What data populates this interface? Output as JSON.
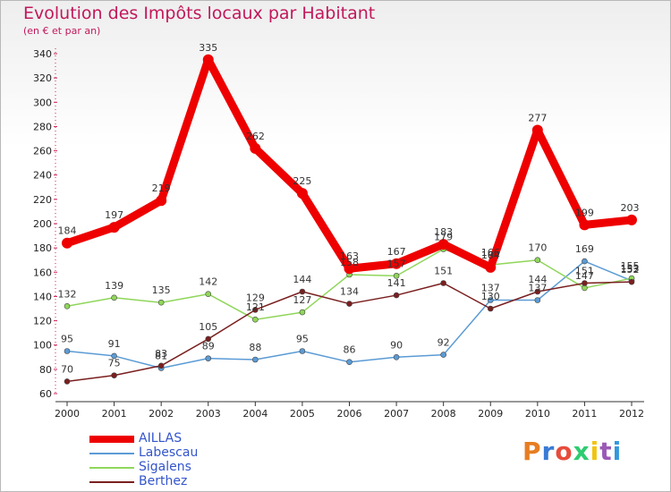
{
  "title": "Evolution des Impôts locaux par Habitant",
  "subtitle": "(en € et par an)",
  "brand": "Proxiti",
  "brand_colors": [
    "#e67e22",
    "#3a7bd5",
    "#e74c3c",
    "#2ecc71",
    "#f1c40f",
    "#9b59b6",
    "#3498db"
  ],
  "chart_data": {
    "type": "line",
    "x": [
      "2000",
      "2001",
      "2002",
      "2003",
      "2004",
      "2005",
      "2006",
      "2007",
      "2008",
      "2009",
      "2010",
      "2011",
      "2012"
    ],
    "ylim": [
      60,
      340
    ],
    "yticks": [
      60,
      80,
      100,
      120,
      140,
      160,
      180,
      200,
      220,
      240,
      260,
      280,
      300,
      320,
      340
    ],
    "grid": false,
    "legend_position": "bottom-left",
    "series": [
      {
        "name": "AILLAS",
        "color": "#ee0000",
        "width": 9,
        "values": [
          184,
          197,
          219,
          335,
          262,
          225,
          163,
          167,
          183,
          164,
          277,
          199,
          203
        ]
      },
      {
        "name": "Labescau",
        "color": "#5b9bd5",
        "width": 1.5,
        "values": [
          95,
          91,
          81,
          89,
          88,
          95,
          86,
          90,
          92,
          137,
          137,
          169,
          153
        ]
      },
      {
        "name": "Sigalens",
        "color": "#8fd65a",
        "width": 1.5,
        "values": [
          132,
          139,
          135,
          142,
          121,
          127,
          158,
          157,
          179,
          166,
          170,
          147,
          155
        ]
      },
      {
        "name": "Berthez",
        "color": "#7a1f1f",
        "width": 1.5,
        "values": [
          70,
          75,
          83,
          105,
          129,
          144,
          134,
          141,
          151,
          130,
          144,
          151,
          152
        ]
      }
    ],
    "data_labels": [
      {
        "s": 0,
        "i": 0,
        "text": "184"
      },
      {
        "s": 0,
        "i": 1,
        "text": "197"
      },
      {
        "s": 0,
        "i": 2,
        "text": "219"
      },
      {
        "s": 0,
        "i": 3,
        "text": "335"
      },
      {
        "s": 0,
        "i": 4,
        "text": "262"
      },
      {
        "s": 0,
        "i": 5,
        "text": "225"
      },
      {
        "s": 0,
        "i": 6,
        "text": "163"
      },
      {
        "s": 0,
        "i": 7,
        "text": "167"
      },
      {
        "s": 0,
        "i": 8,
        "text": "183"
      },
      {
        "s": 0,
        "i": 9,
        "text": "164"
      },
      {
        "s": 0,
        "i": 10,
        "text": "277"
      },
      {
        "s": 0,
        "i": 11,
        "text": "199"
      },
      {
        "s": 0,
        "i": 12,
        "text": "203"
      },
      {
        "s": 1,
        "i": 0,
        "text": "95"
      },
      {
        "s": 1,
        "i": 1,
        "text": "91"
      },
      {
        "s": 1,
        "i": 2,
        "text": "81"
      },
      {
        "s": 1,
        "i": 3,
        "text": "89"
      },
      {
        "s": 1,
        "i": 4,
        "text": "88"
      },
      {
        "s": 1,
        "i": 5,
        "text": "95"
      },
      {
        "s": 1,
        "i": 6,
        "text": "86"
      },
      {
        "s": 1,
        "i": 7,
        "text": "90"
      },
      {
        "s": 1,
        "i": 8,
        "text": "92"
      },
      {
        "s": 1,
        "i": 9,
        "text": "137"
      },
      {
        "s": 1,
        "i": 10,
        "text": "137"
      },
      {
        "s": 1,
        "i": 11,
        "text": "169"
      },
      {
        "s": 1,
        "i": 12,
        "text": "153"
      },
      {
        "s": 2,
        "i": 0,
        "text": "132"
      },
      {
        "s": 2,
        "i": 1,
        "text": "139"
      },
      {
        "s": 2,
        "i": 2,
        "text": "135"
      },
      {
        "s": 2,
        "i": 3,
        "text": "142"
      },
      {
        "s": 2,
        "i": 4,
        "text": "121"
      },
      {
        "s": 2,
        "i": 5,
        "text": "127"
      },
      {
        "s": 2,
        "i": 6,
        "text": "158"
      },
      {
        "s": 2,
        "i": 7,
        "text": "157"
      },
      {
        "s": 2,
        "i": 8,
        "text": "179"
      },
      {
        "s": 2,
        "i": 9,
        "text": "166"
      },
      {
        "s": 2,
        "i": 10,
        "text": "170"
      },
      {
        "s": 2,
        "i": 11,
        "text": "147"
      },
      {
        "s": 2,
        "i": 12,
        "text": "155"
      },
      {
        "s": 3,
        "i": 0,
        "text": "70"
      },
      {
        "s": 3,
        "i": 1,
        "text": "75"
      },
      {
        "s": 3,
        "i": 2,
        "text": "83"
      },
      {
        "s": 3,
        "i": 3,
        "text": "105"
      },
      {
        "s": 3,
        "i": 4,
        "text": "129"
      },
      {
        "s": 3,
        "i": 5,
        "text": "144"
      },
      {
        "s": 3,
        "i": 6,
        "text": "134"
      },
      {
        "s": 3,
        "i": 7,
        "text": "141"
      },
      {
        "s": 3,
        "i": 8,
        "text": "151"
      },
      {
        "s": 3,
        "i": 9,
        "text": "130"
      },
      {
        "s": 3,
        "i": 10,
        "text": "144"
      },
      {
        "s": 3,
        "i": 11,
        "text": "151"
      },
      {
        "s": 3,
        "i": 12,
        "text": "152"
      }
    ]
  }
}
